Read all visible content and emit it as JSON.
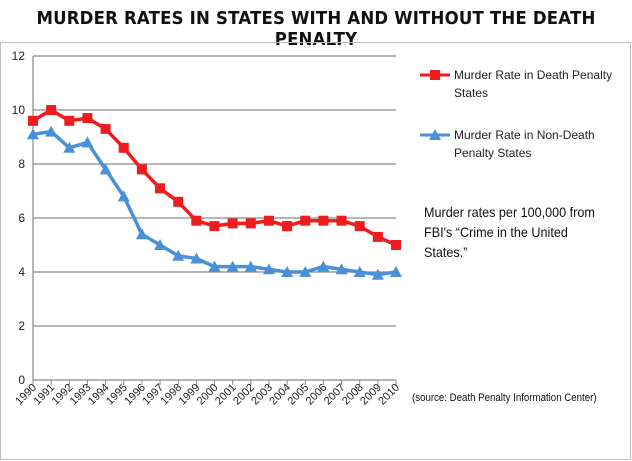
{
  "title": "MURDER RATES IN STATES WITH AND WITHOUT THE DEATH PENALTY",
  "note": "Murder rates per 100,000 from FBI's “Crime in the United States.”",
  "source": "(source: Death Penalty Information Center)",
  "chart_data": {
    "type": "line",
    "title": "MURDER RATES IN STATES WITH AND WITHOUT THE DEATH PENALTY",
    "xlabel": "",
    "ylabel": "",
    "ylim": [
      0,
      12
    ],
    "yticks": [
      0,
      2,
      4,
      6,
      8,
      10,
      12
    ],
    "grid": true,
    "legend": "right",
    "x": [
      "1990",
      "1991",
      "1992",
      "1993",
      "1994",
      "1995",
      "1996",
      "1997",
      "1998",
      "1999",
      "2000",
      "2001",
      "2002",
      "2003",
      "2004",
      "2005",
      "2006",
      "2007",
      "2008",
      "2009",
      "2010"
    ],
    "series": [
      {
        "name": "Murder Rate in Death Penalty States",
        "color": "#ee1c1c",
        "marker": "square",
        "values": [
          9.6,
          10.0,
          9.6,
          9.7,
          9.3,
          8.6,
          7.8,
          7.1,
          6.6,
          5.9,
          5.7,
          5.8,
          5.8,
          5.9,
          5.7,
          5.9,
          5.9,
          5.9,
          5.7,
          5.3,
          5.0
        ]
      },
      {
        "name": "Murder Rate in Non-Death Penalty States",
        "color": "#4a90d9",
        "marker": "triangle",
        "values": [
          9.1,
          9.2,
          8.6,
          8.8,
          7.8,
          6.8,
          5.4,
          5.0,
          4.6,
          4.5,
          4.2,
          4.2,
          4.2,
          4.1,
          4.0,
          4.0,
          4.2,
          4.1,
          4.0,
          3.9,
          4.0
        ]
      }
    ]
  }
}
